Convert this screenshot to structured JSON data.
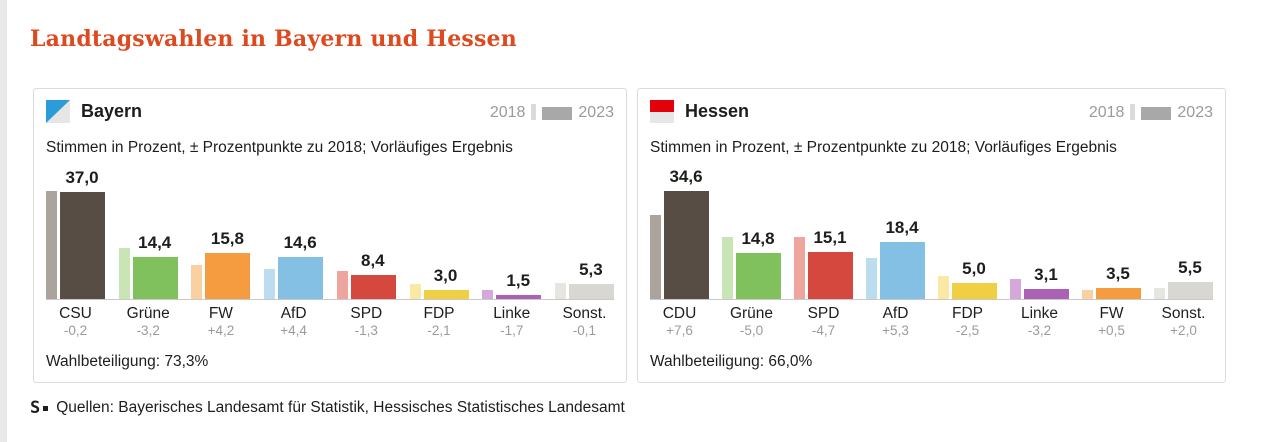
{
  "page": {
    "title": "Landtagswahlen in Bayern und Hessen",
    "title_color": "#dd4a1f",
    "source_logo": "S",
    "source_text": "Quellen: Bayerisches Landesamt für Statistik, Hessisches Statistisches Landesamt"
  },
  "legend": {
    "year_2018": "2018",
    "year_2023": "2023"
  },
  "colors": {
    "union": {
      "light": "#aba49c",
      "dark": "#574d45"
    },
    "gruene": {
      "light": "#c9e5b5",
      "dark": "#80c15e"
    },
    "fw": {
      "light": "#fbd0a0",
      "dark": "#f59b40"
    },
    "afd": {
      "light": "#bcdcf0",
      "dark": "#84c0e4"
    },
    "spd": {
      "light": "#eda59e",
      "dark": "#d5483d"
    },
    "fdp": {
      "light": "#f9e9a4",
      "dark": "#f0cf45"
    },
    "linke": {
      "light": "#d5a8d9",
      "dark": "#ab61b4"
    },
    "sonst": {
      "light": "#e6e5e0",
      "dark": "#d8d7d1"
    }
  },
  "panels": [
    {
      "name": "Bayern",
      "subtitle": "Stimmen in Prozent, ± Prozentpunkte zu 2018; Vorläufiges Ergebnis",
      "turnout": "Wahlbeteiligung: 73,3%",
      "parties": [
        {
          "label": "CSU",
          "color": "union",
          "value_2018": 37.2,
          "value_2023": 37.0,
          "value_label": "37,0",
          "change_label": "-0,2"
        },
        {
          "label": "Grüne",
          "color": "gruene",
          "value_2018": 17.6,
          "value_2023": 14.4,
          "value_label": "14,4",
          "change_label": "-3,2"
        },
        {
          "label": "FW",
          "color": "fw",
          "value_2018": 11.6,
          "value_2023": 15.8,
          "value_label": "15,8",
          "change_label": "+4,2"
        },
        {
          "label": "AfD",
          "color": "afd",
          "value_2018": 10.2,
          "value_2023": 14.6,
          "value_label": "14,6",
          "change_label": "+4,4"
        },
        {
          "label": "SPD",
          "color": "spd",
          "value_2018": 9.7,
          "value_2023": 8.4,
          "value_label": "8,4",
          "change_label": "-1,3"
        },
        {
          "label": "FDP",
          "color": "fdp",
          "value_2018": 5.1,
          "value_2023": 3.0,
          "value_label": "3,0",
          "change_label": "-2,1"
        },
        {
          "label": "Linke",
          "color": "linke",
          "value_2018": 3.2,
          "value_2023": 1.5,
          "value_label": "1,5",
          "change_label": "-1,7"
        },
        {
          "label": "Sonst.",
          "color": "sonst",
          "value_2018": 5.4,
          "value_2023": 5.3,
          "value_label": "5,3",
          "change_label": "-0,1"
        }
      ]
    },
    {
      "name": "Hessen",
      "subtitle": "Stimmen in Prozent, ± Prozentpunkte zu 2018; Vorläufiges Ergebnis",
      "turnout": "Wahlbeteiligung: 66,0%",
      "parties": [
        {
          "label": "CDU",
          "color": "union",
          "value_2018": 27.0,
          "value_2023": 34.6,
          "value_label": "34,6",
          "change_label": "+7,6"
        },
        {
          "label": "Grüne",
          "color": "gruene",
          "value_2018": 19.8,
          "value_2023": 14.8,
          "value_label": "14,8",
          "change_label": "-5,0"
        },
        {
          "label": "SPD",
          "color": "spd",
          "value_2018": 19.8,
          "value_2023": 15.1,
          "value_label": "15,1",
          "change_label": "-4,7"
        },
        {
          "label": "AfD",
          "color": "afd",
          "value_2018": 13.1,
          "value_2023": 18.4,
          "value_label": "18,4",
          "change_label": "+5,3"
        },
        {
          "label": "FDP",
          "color": "fdp",
          "value_2018": 7.5,
          "value_2023": 5.0,
          "value_label": "5,0",
          "change_label": "-2,5"
        },
        {
          "label": "Linke",
          "color": "linke",
          "value_2018": 6.3,
          "value_2023": 3.1,
          "value_label": "3,1",
          "change_label": "-3,2"
        },
        {
          "label": "FW",
          "color": "fw",
          "value_2018": 3.0,
          "value_2023": 3.5,
          "value_label": "3,5",
          "change_label": "+0,5"
        },
        {
          "label": "Sonst.",
          "color": "sonst",
          "value_2018": 3.5,
          "value_2023": 5.5,
          "value_label": "5,5",
          "change_label": "+2,0"
        }
      ]
    }
  ],
  "chart_data": [
    {
      "type": "bar",
      "title": "Bayern",
      "subtitle": "Stimmen in Prozent, ± Prozentpunkte zu 2018; Vorläufiges Ergebnis",
      "categories": [
        "CSU",
        "Grüne",
        "FW",
        "AfD",
        "SPD",
        "FDP",
        "Linke",
        "Sonst."
      ],
      "series": [
        {
          "name": "2018",
          "values": [
            37.2,
            17.6,
            11.6,
            10.2,
            9.7,
            5.1,
            3.2,
            5.4
          ]
        },
        {
          "name": "2023",
          "values": [
            37.0,
            14.4,
            15.8,
            14.6,
            8.4,
            3.0,
            1.5,
            5.3
          ]
        }
      ],
      "changes_vs_2018": [
        -0.2,
        -3.2,
        4.2,
        4.4,
        -1.3,
        -2.1,
        -1.7,
        -0.1
      ],
      "turnout_percent": 73.3,
      "xlabel": "",
      "ylabel": "Stimmen in Prozent",
      "ylim": [
        0,
        37.2
      ],
      "grid": false,
      "legend_position": "top-right"
    },
    {
      "type": "bar",
      "title": "Hessen",
      "subtitle": "Stimmen in Prozent, ± Prozentpunkte zu 2018; Vorläufiges Ergebnis",
      "categories": [
        "CDU",
        "Grüne",
        "SPD",
        "AfD",
        "FDP",
        "Linke",
        "FW",
        "Sonst."
      ],
      "series": [
        {
          "name": "2018",
          "values": [
            27.0,
            19.8,
            19.8,
            13.1,
            7.5,
            6.3,
            3.0,
            3.5
          ]
        },
        {
          "name": "2023",
          "values": [
            34.6,
            14.8,
            15.1,
            18.4,
            5.0,
            3.1,
            3.5,
            5.5
          ]
        }
      ],
      "changes_vs_2018": [
        7.6,
        -5.0,
        -4.7,
        5.3,
        -2.5,
        -3.2,
        0.5,
        2.0
      ],
      "turnout_percent": 66.0,
      "xlabel": "",
      "ylabel": "Stimmen in Prozent",
      "ylim": [
        0,
        34.6
      ],
      "grid": false,
      "legend_position": "top-right"
    }
  ]
}
